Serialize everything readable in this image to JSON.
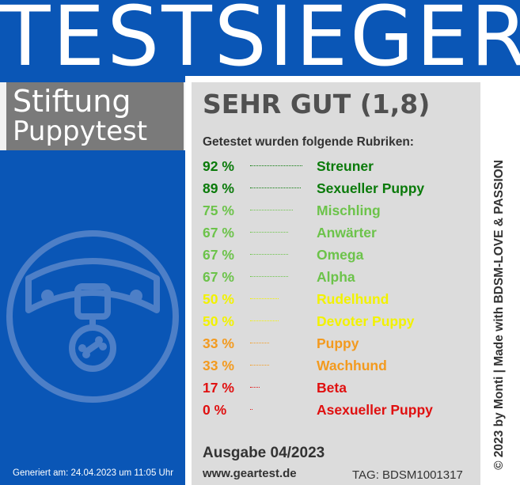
{
  "header": {
    "title": "TESTSIEGER",
    "color": "#0a56b6"
  },
  "organization": {
    "line1": "Stiftung",
    "line2": "Puppytest"
  },
  "rating": "SEHR GUT (1,8)",
  "subtitle": "Getestet wurden folgende Rubriken:",
  "categories": [
    {
      "percent": "92 %",
      "value": 92,
      "name": "Streuner",
      "color": "#0a7a0a"
    },
    {
      "percent": "89 %",
      "value": 89,
      "name": "Sexueller Puppy",
      "color": "#0a7a0a"
    },
    {
      "percent": "75 %",
      "value": 75,
      "name": "Mischling",
      "color": "#6cc34a"
    },
    {
      "percent": "67 %",
      "value": 67,
      "name": "Anwärter",
      "color": "#6cc34a"
    },
    {
      "percent": "67 %",
      "value": 67,
      "name": "Omega",
      "color": "#6cc34a"
    },
    {
      "percent": "67 %",
      "value": 67,
      "name": "Alpha",
      "color": "#6cc34a"
    },
    {
      "percent": "50 %",
      "value": 50,
      "name": "Rudelhund",
      "color": "#f2f200"
    },
    {
      "percent": "50 %",
      "value": 50,
      "name": "Devoter Puppy",
      "color": "#f2f200"
    },
    {
      "percent": "33 %",
      "value": 33,
      "name": "Puppy",
      "color": "#f39a1e"
    },
    {
      "percent": "33 %",
      "value": 33,
      "name": "Wachhund",
      "color": "#f39a1e"
    },
    {
      "percent": "17 %",
      "value": 17,
      "name": "Beta",
      "color": "#e01010"
    },
    {
      "percent": "0 %",
      "value": 0,
      "name": "Asexueller Puppy",
      "color": "#e01010"
    }
  ],
  "edition": "Ausgabe 04/2023",
  "website": "www.geartest.de",
  "tag": "TAG: BDSM1001317",
  "generated": "Generiert am: 24.04.2023 um 11:05 Uhr",
  "copyright": "© 2023 by Monti | Made with BDSM-LOVE & PASSION",
  "icon": "dog-collar-icon"
}
